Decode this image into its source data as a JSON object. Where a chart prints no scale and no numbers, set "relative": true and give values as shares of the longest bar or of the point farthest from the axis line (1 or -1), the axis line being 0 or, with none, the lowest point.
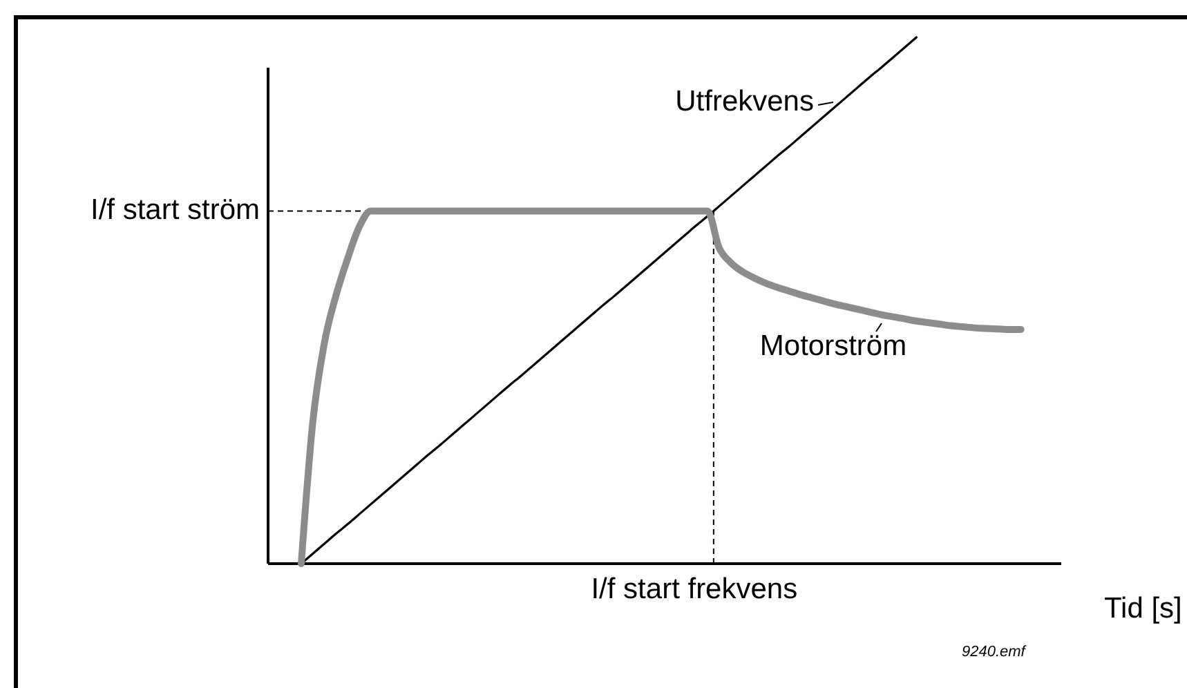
{
  "chart_data": {
    "type": "line",
    "relative": true,
    "xlabel": "Tid [s]",
    "categories": [
      null,
      null,
      null,
      null,
      null,
      null,
      null,
      null,
      null,
      null,
      null,
      null,
      null,
      null,
      null,
      null,
      null,
      null,
      null,
      null,
      null,
      null,
      null,
      null,
      null,
      null,
      null,
      null,
      null,
      null,
      null,
      null,
      null,
      null,
      null,
      null,
      null,
      null,
      null,
      null,
      null,
      null,
      null,
      null,
      null,
      null,
      null,
      null,
      null,
      null,
      null,
      null,
      null,
      null,
      null,
      null,
      null,
      null,
      null,
      null,
      null,
      null,
      null,
      null,
      null,
      null,
      null,
      null,
      null
    ],
    "series": [
      {
        "name": "Utfrekvens",
        "color": "#000000",
        "values": [
          null,
          null,
          null,
          0,
          0.019,
          0.038,
          0.057,
          0.075,
          0.094,
          0.113,
          0.132,
          0.151,
          0.17,
          0.189,
          0.208,
          0.226,
          0.245,
          0.264,
          0.283,
          0.302,
          0.321,
          0.34,
          0.358,
          0.377,
          0.396,
          0.415,
          0.434,
          0.453,
          0.472,
          0.491,
          0.509,
          0.528,
          0.547,
          0.566,
          0.585,
          0.604,
          0.623,
          0.642,
          0.66,
          0.679,
          0.698,
          0.717,
          0.736,
          0.755,
          0.774,
          0.792,
          0.811,
          0.83,
          0.849,
          0.868,
          0.887,
          0.906,
          0.925,
          0.943,
          0.962,
          0.981,
          1,
          null,
          null,
          null,
          null,
          null,
          null,
          null,
          null,
          null,
          null,
          null,
          null
        ]
      },
      {
        "name": "Motorström",
        "color": "#8c8c8c",
        "values": [
          null,
          null,
          null,
          0,
          0.27,
          0.42,
          0.51,
          0.58,
          0.64,
          0.67,
          0.67,
          0.67,
          0.67,
          0.67,
          0.67,
          0.67,
          0.67,
          0.67,
          0.67,
          0.67,
          0.67,
          0.67,
          0.67,
          0.67,
          0.67,
          0.67,
          0.67,
          0.67,
          0.67,
          0.67,
          0.67,
          0.67,
          0.67,
          0.67,
          0.67,
          0.67,
          0.67,
          0.67,
          0.67,
          0.6,
          0.572,
          0.555,
          0.543,
          0.533,
          0.525,
          0.518,
          0.511,
          0.505,
          0.499,
          0.493,
          0.488,
          0.483,
          0.478,
          0.473,
          0.469,
          0.465,
          0.461,
          0.458,
          0.455,
          0.452,
          0.45,
          0.448,
          0.447,
          0.446,
          0.445,
          0.445,
          null,
          null,
          null
        ]
      }
    ],
    "ref_lines": [
      {
        "axis": "y",
        "value": 0.67,
        "label": "I/f start ström",
        "line_style": "dashed"
      }
    ],
    "annotations": [
      "I/f start frekvens",
      "9240.emf"
    ]
  }
}
